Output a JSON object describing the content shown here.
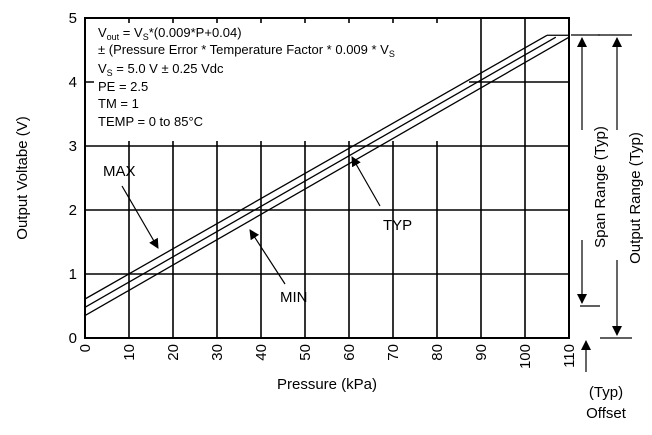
{
  "chart_data": {
    "type": "line",
    "xlabel": "Pressure (kPa)",
    "ylabel": "Output Voltabe (V)",
    "xlim": [
      0,
      110
    ],
    "ylim": [
      0,
      5
    ],
    "x_ticks": [
      "0",
      "10",
      "20",
      "30",
      "40",
      "50",
      "60",
      "70",
      "80",
      "90",
      "100",
      "110"
    ],
    "y_ticks": [
      "0",
      "1",
      "2",
      "3",
      "4",
      "5"
    ],
    "grid": true,
    "series": [
      {
        "name": "MAX",
        "x": [
          0,
          105
        ],
        "y": [
          0.61,
          4.73
        ]
      },
      {
        "name": "TYP",
        "x": [
          0,
          107
        ],
        "y": [
          0.48,
          4.7
        ]
      },
      {
        "name": "MIN",
        "x": [
          0,
          110
        ],
        "y": [
          0.35,
          4.7
        ]
      }
    ],
    "formula_box": {
      "line1": {
        "a": "V",
        "a_sub": "out",
        "b": " = V",
        "b_sub": "S",
        "c": "*(0.009*P+0.04)"
      },
      "line2": {
        "a": "± (Pressure Error * Temperature Factor * 0.009 * V",
        "a_sub": "S"
      },
      "line3": {
        "a": "V",
        "a_sub": "S",
        "b": " = 5.0 V ± 0.25 Vdc"
      },
      "line4": "PE = 2.5",
      "line5": "TM = 1",
      "line6": "TEMP = 0 to 85°C"
    },
    "annotations": {
      "max": "MAX",
      "typ": "TYP",
      "min": "MIN",
      "span": "Span Range (Typ)",
      "output_range": "Output Range (Typ)",
      "offset_typ": "(Typ)",
      "offset": "Offset"
    }
  }
}
